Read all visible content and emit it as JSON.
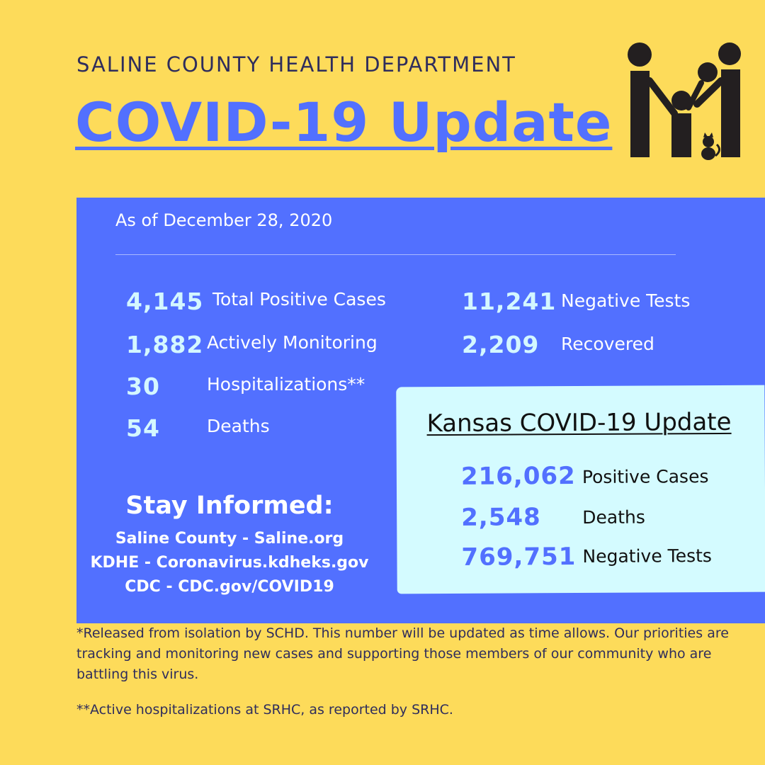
{
  "header": {
    "org": "SALINE COUNTY HEALTH DEPARTMENT",
    "title": "COVID-19 Update",
    "logo_icon": "family-icon"
  },
  "county": {
    "as_of": "As of December 28, 2020",
    "stats": [
      {
        "value": "4,145",
        "label": "Total Positive Cases"
      },
      {
        "value": "1,882",
        "label": "Actively Monitoring"
      },
      {
        "value": "30",
        "label": "Hospitalizations**"
      },
      {
        "value": "54",
        "label": "Deaths"
      },
      {
        "value": "11,241",
        "label": "Negative Tests"
      },
      {
        "value": "2,209",
        "label": "Recovered"
      }
    ]
  },
  "stay_informed": {
    "title": "Stay Informed:",
    "lines": [
      "Saline County - Saline.org",
      "KDHE - Coronavirus.kdheks.gov",
      "CDC - CDC.gov/COVID19"
    ]
  },
  "kansas": {
    "title": "Kansas COVID-19 Update",
    "stats": [
      {
        "value": "216,062",
        "label": "Positive Cases"
      },
      {
        "value": "2,548",
        "label": "Deaths"
      },
      {
        "value": "769,751",
        "label": "Negative Tests"
      }
    ]
  },
  "footnotes": {
    "note1": "*Released from isolation by SCHD. This number will be updated as time allows. Our priorities are tracking and monitoring new cases and supporting those members of our community who are battling this virus.",
    "note2": "**Active hospitalizations at SRHC, as reported by SRHC."
  },
  "colors": {
    "background": "#fddb5a",
    "panel": "#5270ff",
    "kansas_box": "#d4fbff",
    "accent": "#5270ff",
    "text_dark": "#2f2d5c"
  }
}
